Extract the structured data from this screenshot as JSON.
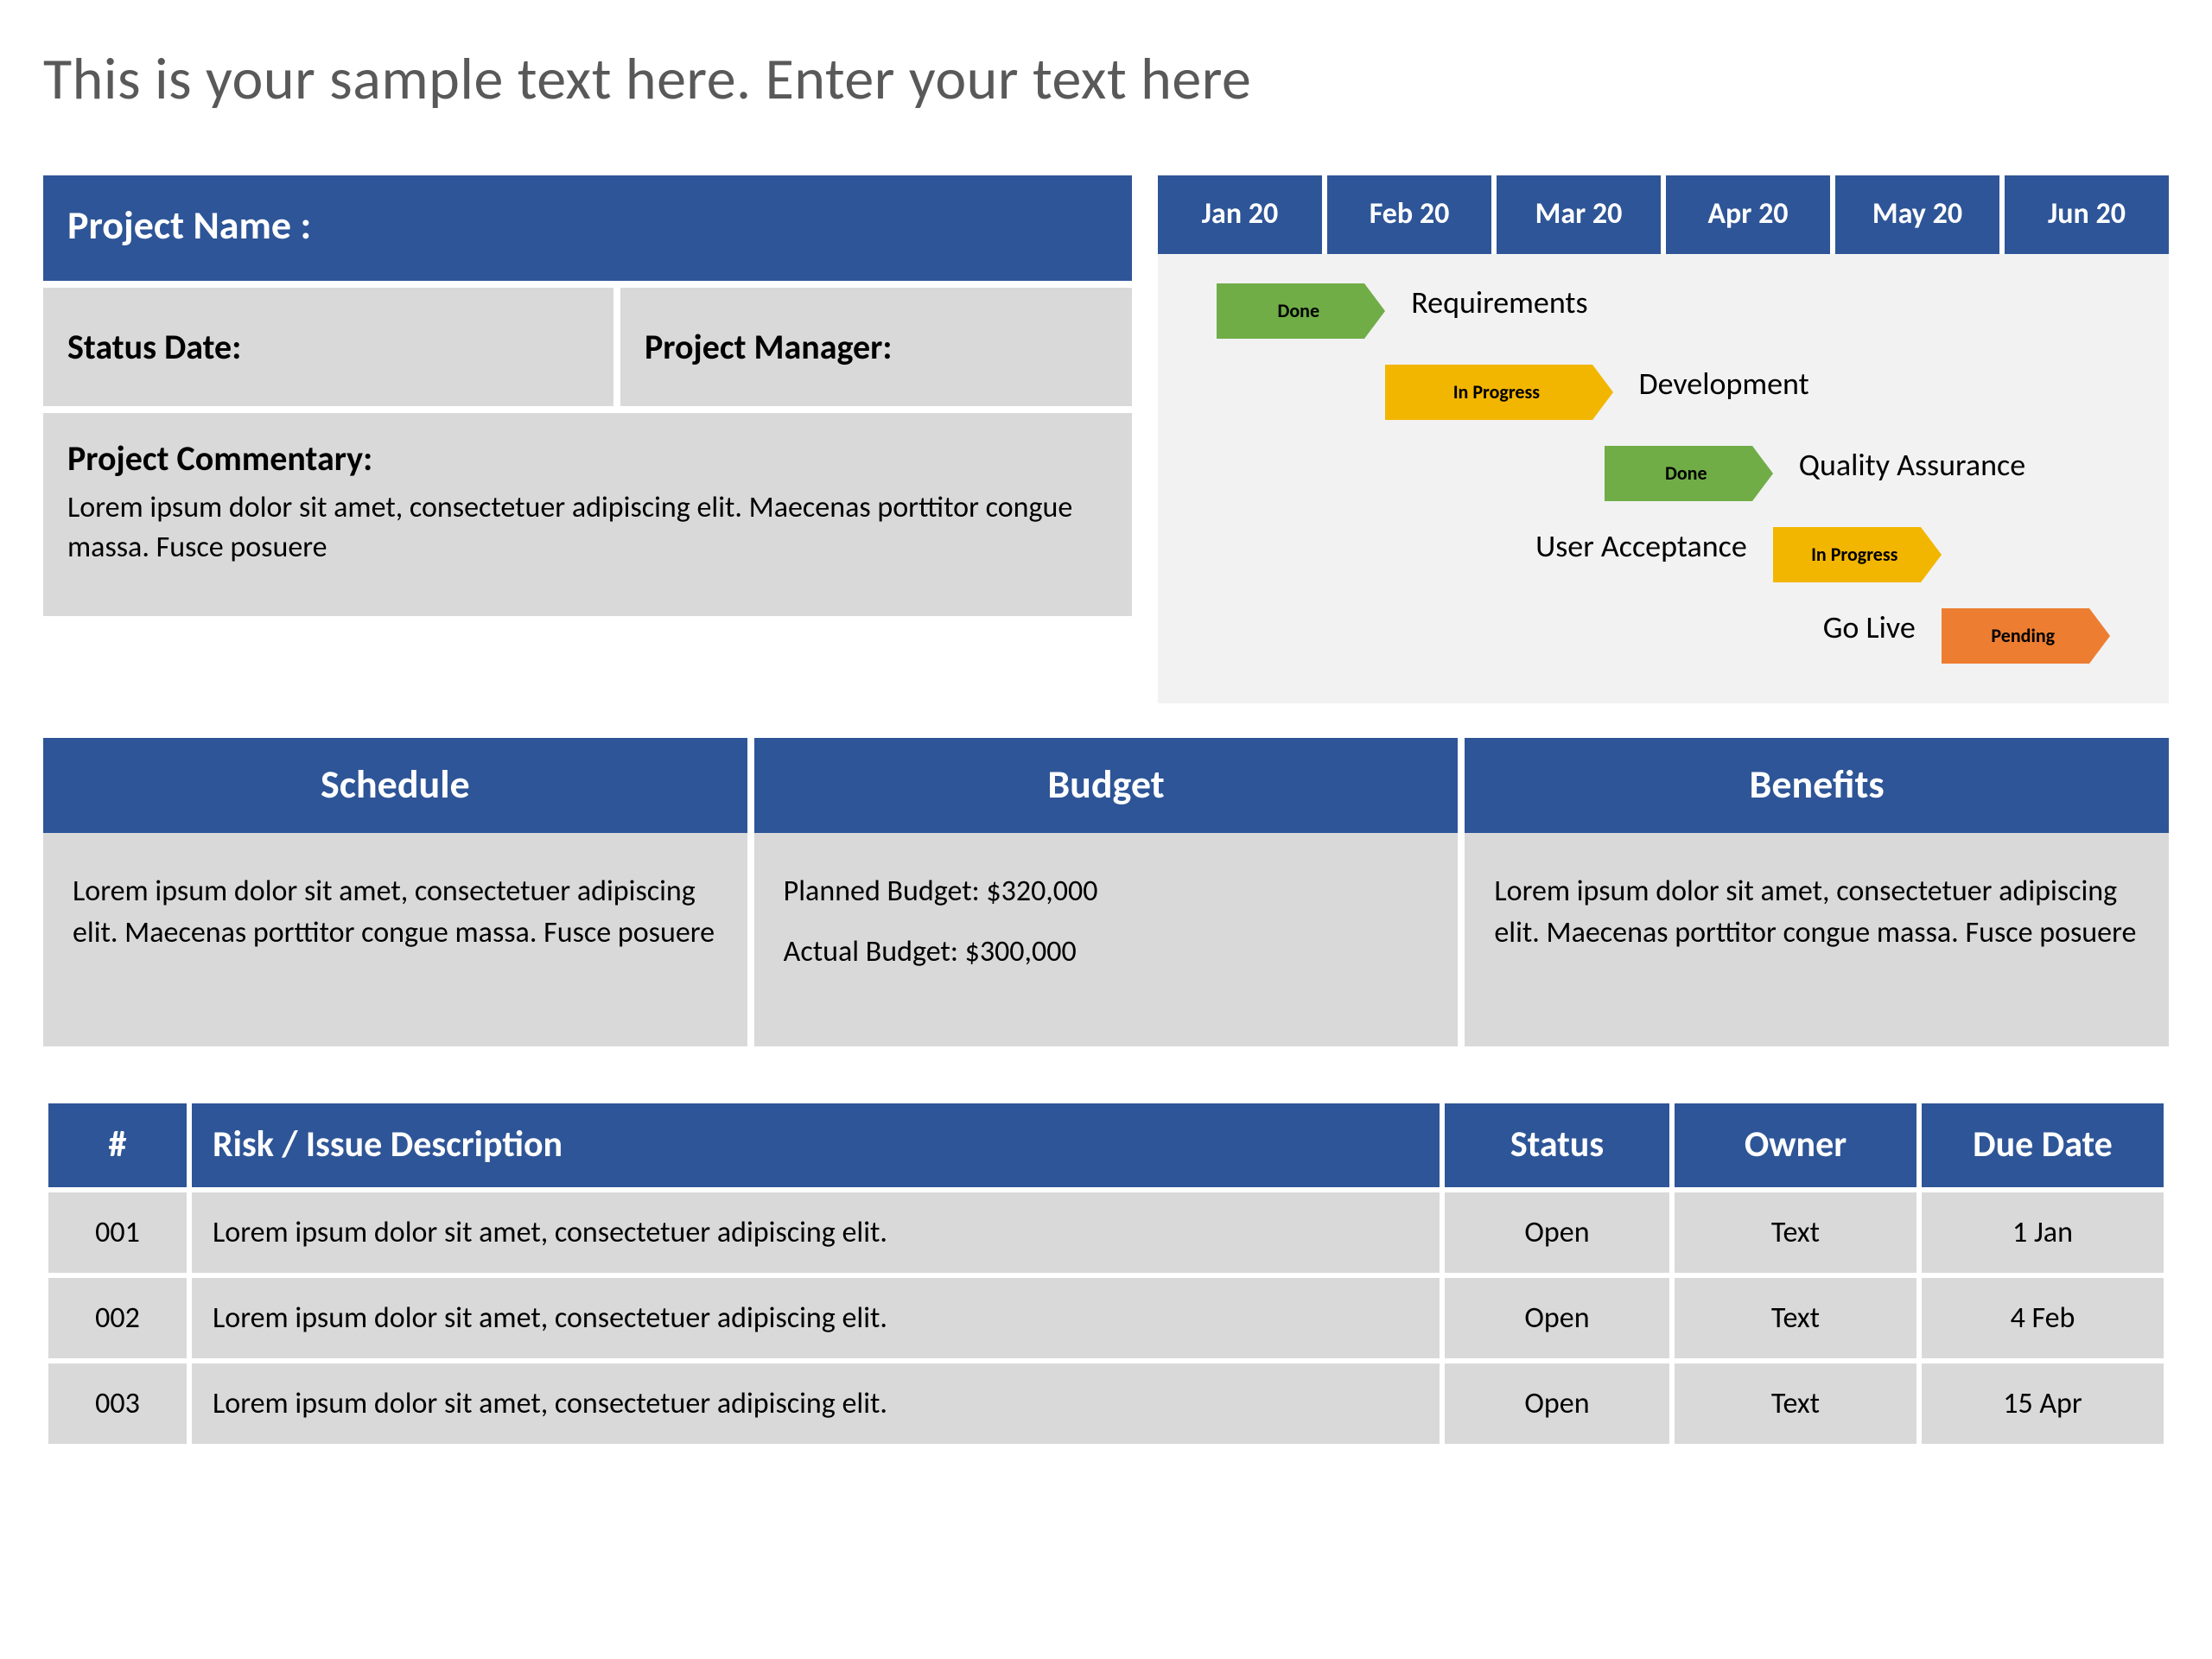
{
  "colors": {
    "header_bg": "#2e5597",
    "header_text": "#ffffff",
    "cell_bg": "#d9d9d9",
    "timeline_bg": "#f2f2f2",
    "title_color": "#595959",
    "status": {
      "done": "#70ad47",
      "in_progress": "#f2b600",
      "pending": "#ed7d31"
    }
  },
  "title": "This is your sample text here. Enter your text here",
  "project_info": {
    "name_label": "Project Name :",
    "status_date_label": "Status Date:",
    "pm_label": "Project Manager:",
    "commentary_label": "Project Commentary:",
    "commentary_text": "Lorem ipsum dolor sit amet, consectetuer adipiscing elit. Maecenas porttitor congue massa. Fusce posuere"
  },
  "timeline": {
    "months": [
      "Jan 20",
      "Feb 20",
      "Mar 20",
      "Apr 20",
      "May 20",
      "Jun 20"
    ],
    "col_pct": 16.6667,
    "rows": [
      {
        "phase": "Requirements",
        "label_side": "right",
        "start_col": 0.35,
        "span_cols": 1.0,
        "status_key": "done",
        "status_text": "Done"
      },
      {
        "phase": "Development",
        "label_side": "right",
        "start_col": 1.35,
        "span_cols": 1.35,
        "status_key": "in_progress",
        "status_text": "In Progress"
      },
      {
        "phase": "Quality Assurance",
        "label_side": "right",
        "start_col": 2.65,
        "span_cols": 1.0,
        "status_key": "done",
        "status_text": "Done"
      },
      {
        "phase": "User Acceptance",
        "label_side": "left",
        "start_col": 3.65,
        "span_cols": 1.0,
        "status_key": "in_progress",
        "status_text": "In Progress"
      },
      {
        "phase": "Go Live",
        "label_side": "left",
        "start_col": 4.65,
        "span_cols": 1.0,
        "status_key": "pending",
        "status_text": "Pending"
      }
    ]
  },
  "panels": {
    "schedule": {
      "title": "Schedule",
      "text": "Lorem ipsum dolor sit amet, consectetuer adipiscing elit. Maecenas porttitor congue massa. Fusce posuere"
    },
    "budget": {
      "title": "Budget",
      "planned_label": "Planned Budget: $320,000",
      "actual_label": "Actual Budget: $300,000"
    },
    "benefits": {
      "title": "Benefits",
      "text": "Lorem ipsum dolor sit amet, consectetuer adipiscing elit. Maecenas porttitor congue massa. Fusce posuere"
    }
  },
  "risk_table": {
    "columns": {
      "num": "#",
      "desc": "Risk / Issue Description",
      "status": "Status",
      "owner": "Owner",
      "due": "Due Date"
    },
    "rows": [
      {
        "num": "001",
        "desc": "Lorem ipsum dolor sit amet, consectetuer adipiscing elit.",
        "status": "Open",
        "owner": "Text",
        "due": "1 Jan"
      },
      {
        "num": "002",
        "desc": "Lorem ipsum dolor sit amet, consectetuer adipiscing elit.",
        "status": "Open",
        "owner": "Text",
        "due": "4 Feb"
      },
      {
        "num": "003",
        "desc": "Lorem ipsum dolor sit amet, consectetuer adipiscing elit.",
        "status": "Open",
        "owner": "Text",
        "due": "15 Apr"
      }
    ]
  }
}
